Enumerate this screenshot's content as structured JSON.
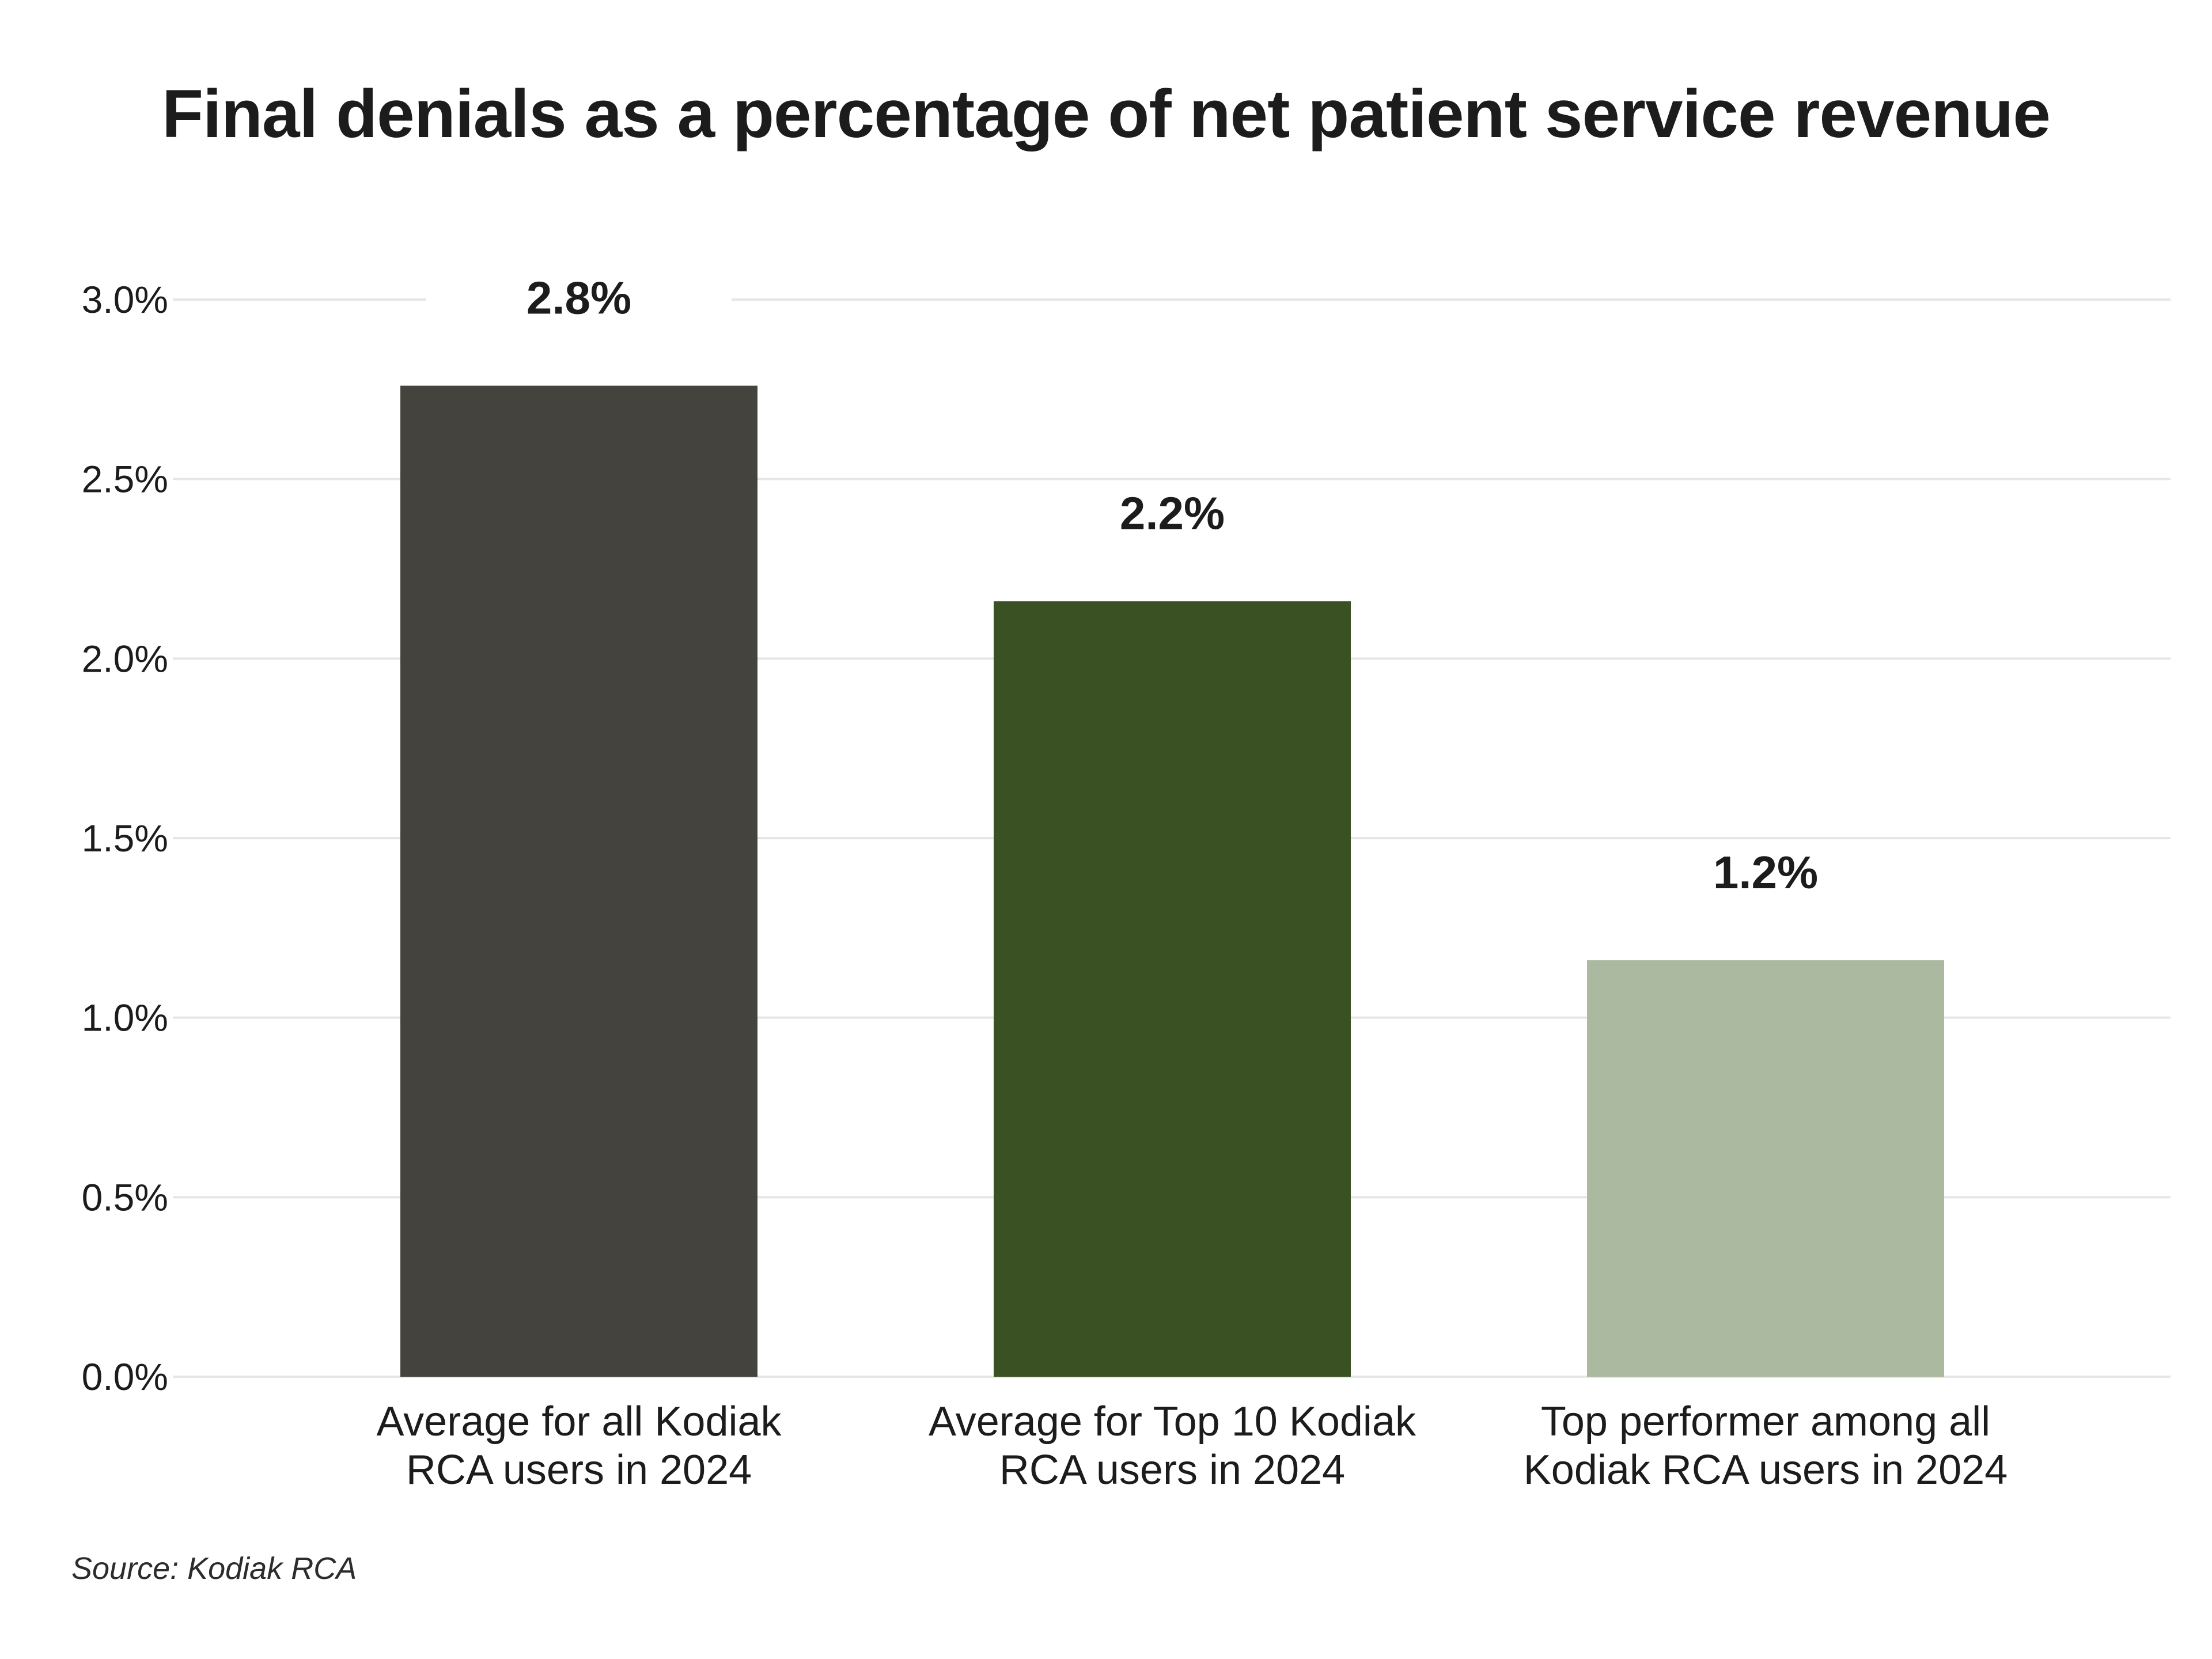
{
  "chart_data": {
    "type": "bar",
    "title": "Final denials as a percentage of net patient service revenue",
    "categories": [
      [
        "Average for all Kodiak",
        "RCA users in 2024"
      ],
      [
        "Average for Top 10 Kodiak",
        "RCA users in 2024"
      ],
      [
        "Top performer among all",
        "Kodiak RCA users in 2024"
      ]
    ],
    "values": [
      2.76,
      2.16,
      1.16
    ],
    "data_labels": [
      "2.8%",
      "2.2%",
      "1.2%"
    ],
    "colors": [
      "#45433d",
      "#3a5124",
      "#acb9a1"
    ],
    "ylim": [
      0,
      3.0
    ],
    "yticks": [
      0,
      0.5,
      1.0,
      1.5,
      2.0,
      2.5,
      3.0
    ],
    "ytick_labels": [
      "0.0%",
      "0.5%",
      "1.0%",
      "1.5%",
      "2.0%",
      "2.5%",
      "3.0%"
    ],
    "xlabel": "",
    "ylabel": "",
    "grid": true,
    "gridline_color": "#e6e6e6",
    "source": "Source: Kodiak RCA"
  }
}
